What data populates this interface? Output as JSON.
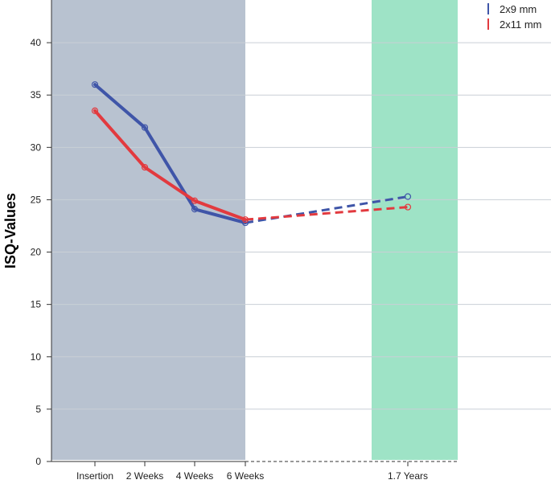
{
  "chart_data": {
    "type": "line",
    "title": "",
    "xlabel": "",
    "ylabel": "ISQ-Values",
    "ylim": [
      0,
      44
    ],
    "yticks": [
      0,
      5,
      10,
      15,
      20,
      25,
      30,
      35,
      40
    ],
    "categories": [
      "Insertion",
      "2 Weeks",
      "4 Weeks",
      "6 Weeks",
      "1.7 Years"
    ],
    "grid": "horizontal",
    "legend_position": "top-right",
    "shaded_regions": [
      {
        "from": "Insertion",
        "to": "6 Weeks",
        "color": "#b8c2d0"
      },
      {
        "around": "1.7 Years",
        "color": "#9ee3c6"
      }
    ],
    "series": [
      {
        "name": "2x9 mm",
        "color": "#3f55a8",
        "values": [
          36.0,
          31.9,
          24.1,
          22.8,
          25.3
        ],
        "dashed_from_index": 3
      },
      {
        "name": "2x11 mm",
        "color": "#e23a3f",
        "values": [
          33.5,
          28.1,
          24.9,
          23.1,
          24.3
        ],
        "dashed_from_index": 3
      }
    ]
  }
}
